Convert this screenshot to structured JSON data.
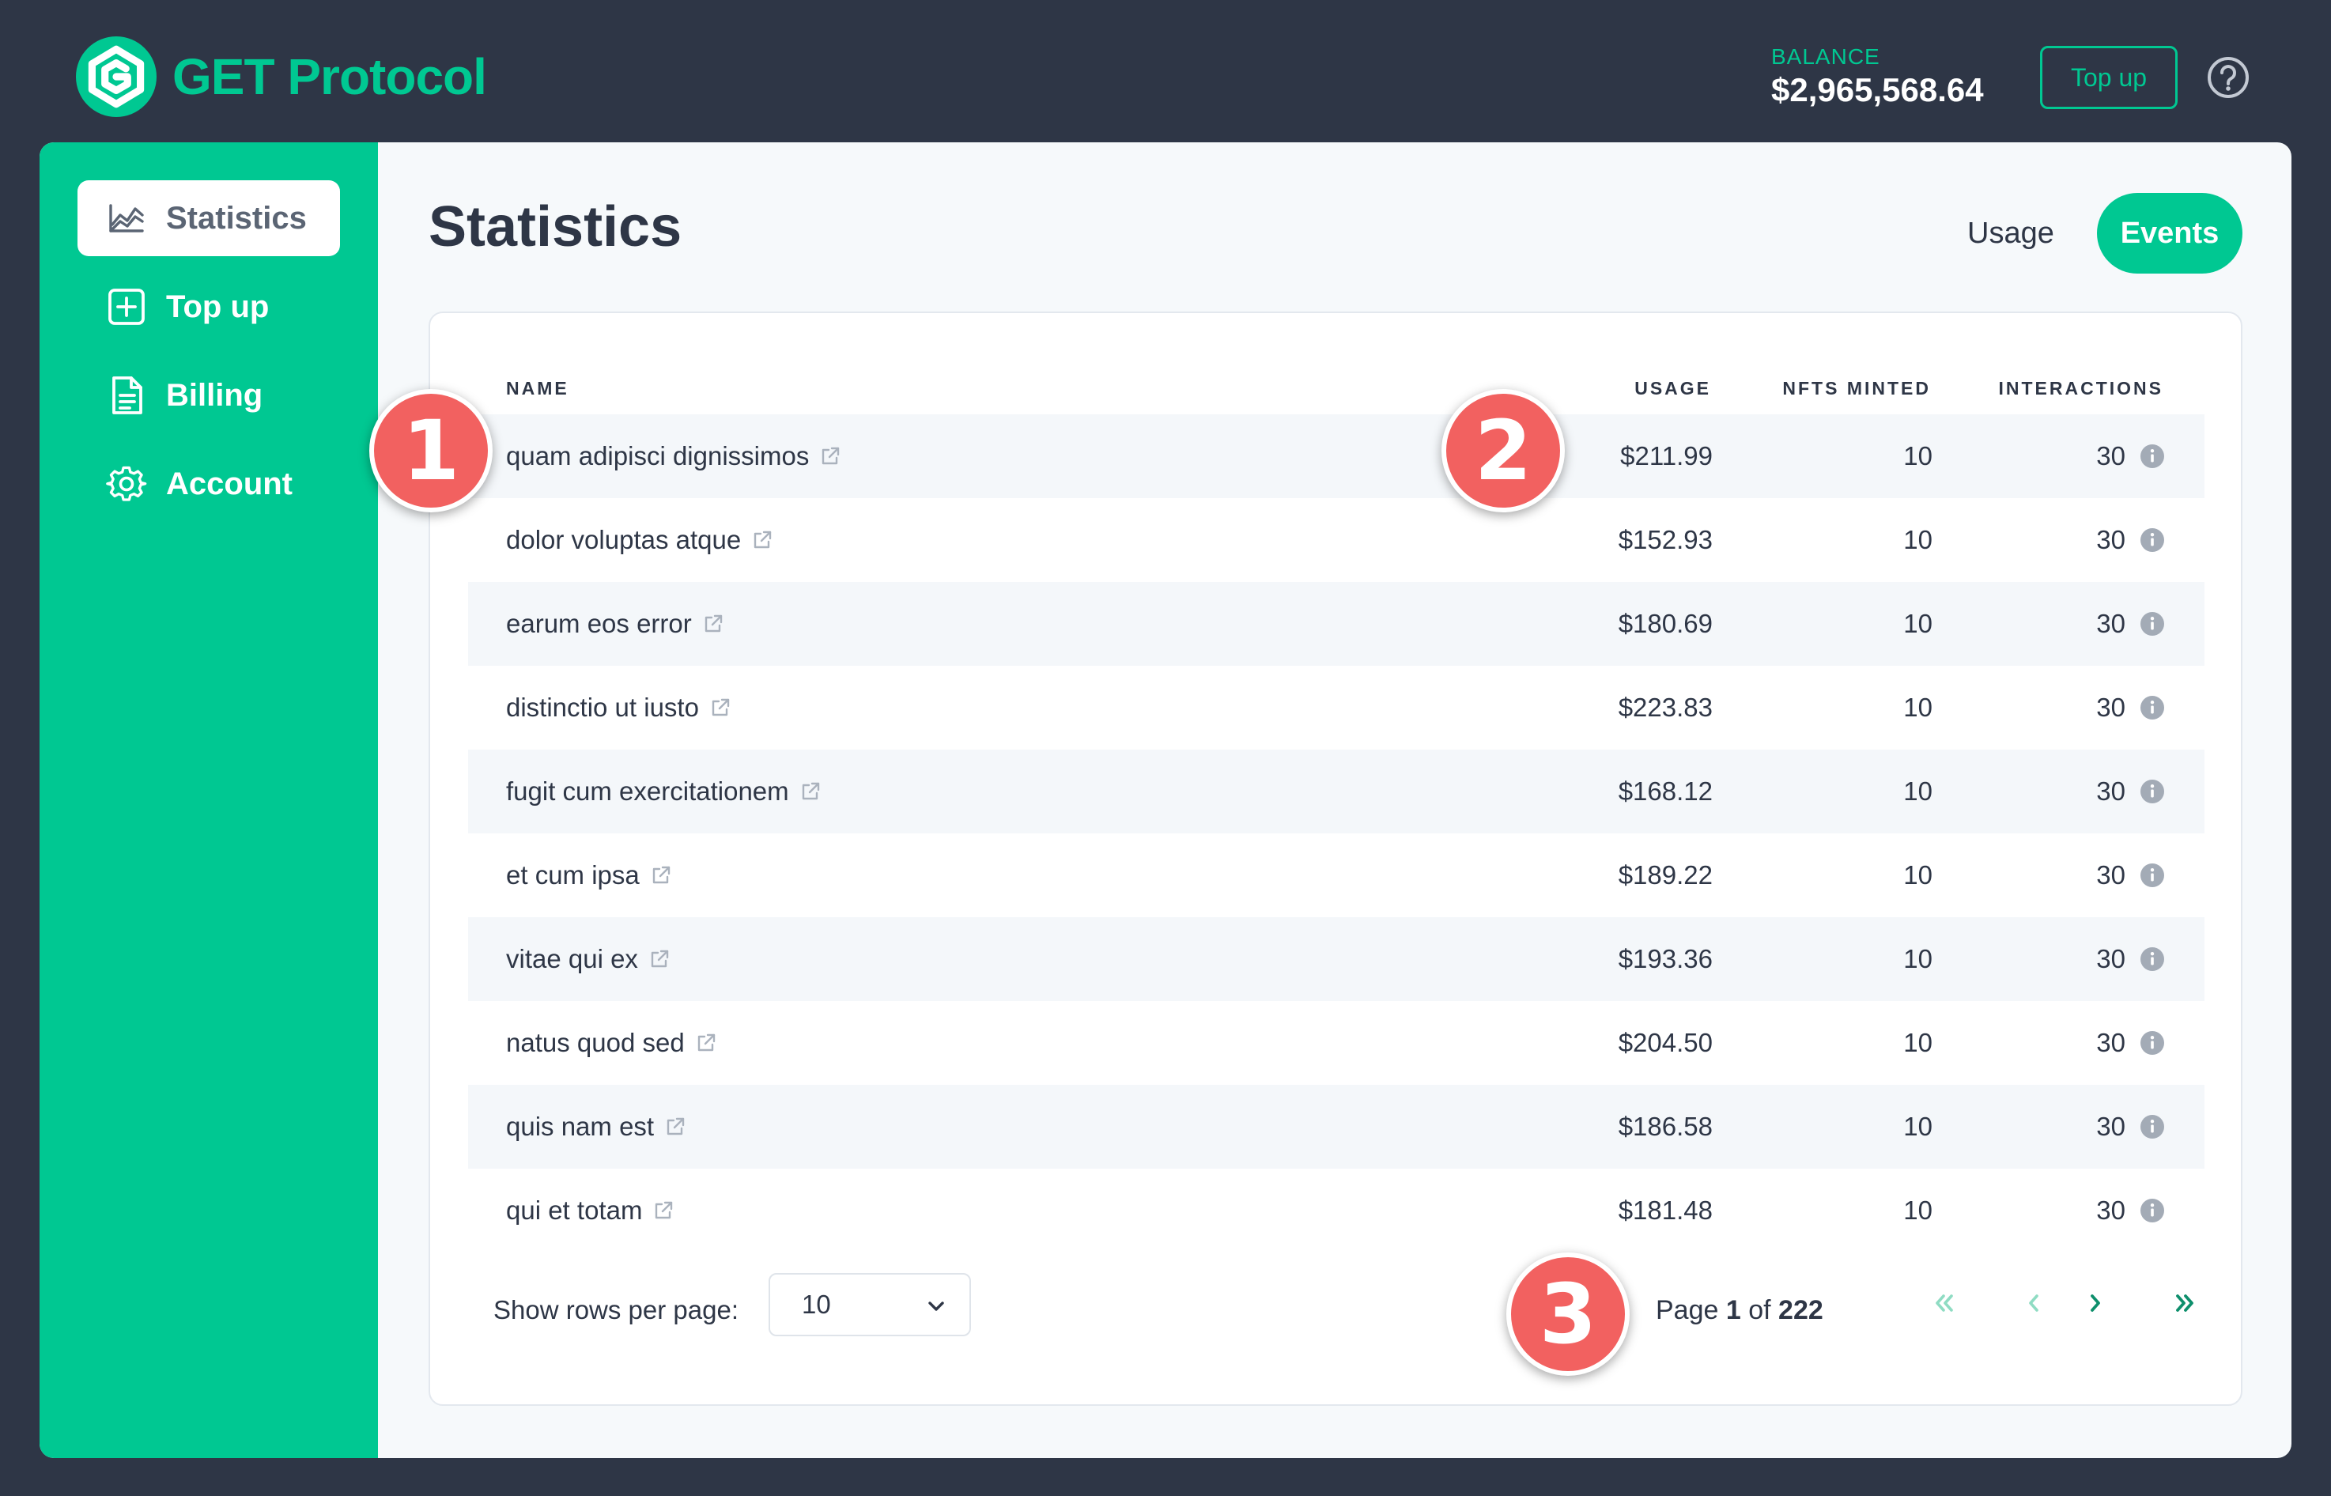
{
  "app": {
    "brand": "GET Protocol",
    "brand_color": "#00c892"
  },
  "header": {
    "balance_label": "BALANCE",
    "balance_value": "$2,965,568.64",
    "topup_label": "Top up"
  },
  "sidebar": {
    "items": [
      {
        "label": "Statistics",
        "icon": "chart-icon",
        "active": true
      },
      {
        "label": "Top up",
        "icon": "plus-square-icon"
      },
      {
        "label": "Billing",
        "icon": "document-icon"
      },
      {
        "label": "Account",
        "icon": "gear-icon"
      }
    ]
  },
  "main": {
    "title": "Statistics",
    "tabs": [
      {
        "label": "Usage"
      },
      {
        "label": "Events",
        "active": true
      }
    ]
  },
  "table": {
    "headers": {
      "name": "NAME",
      "usage": "USAGE",
      "nfts": "NFTS MINTED",
      "interactions": "INTERACTIONS"
    },
    "rows": [
      {
        "name": "quam adipisci dignissimos",
        "usage": "$211.99",
        "nfts": "10",
        "interactions": "30"
      },
      {
        "name": "dolor voluptas atque",
        "usage": "$152.93",
        "nfts": "10",
        "interactions": "30"
      },
      {
        "name": "earum eos error",
        "usage": "$180.69",
        "nfts": "10",
        "interactions": "30"
      },
      {
        "name": "distinctio ut iusto",
        "usage": "$223.83",
        "nfts": "10",
        "interactions": "30"
      },
      {
        "name": "fugit cum exercitationem",
        "usage": "$168.12",
        "nfts": "10",
        "interactions": "30"
      },
      {
        "name": "et cum ipsa",
        "usage": "$189.22",
        "nfts": "10",
        "interactions": "30"
      },
      {
        "name": "vitae qui ex",
        "usage": "$193.36",
        "nfts": "10",
        "interactions": "30"
      },
      {
        "name": "natus quod sed",
        "usage": "$204.50",
        "nfts": "10",
        "interactions": "30"
      },
      {
        "name": "quis nam est",
        "usage": "$186.58",
        "nfts": "10",
        "interactions": "30"
      },
      {
        "name": "qui et totam",
        "usage": "$181.48",
        "nfts": "10",
        "interactions": "30"
      }
    ]
  },
  "pagination": {
    "rows_per_page_label": "Show rows per page:",
    "rows_per_page_value": "10",
    "page_word": "Page",
    "current_page": "1",
    "of_word": "of",
    "total_pages": "222"
  },
  "annotations": {
    "badge_1": "1",
    "badge_2": "2",
    "badge_3": "3"
  }
}
